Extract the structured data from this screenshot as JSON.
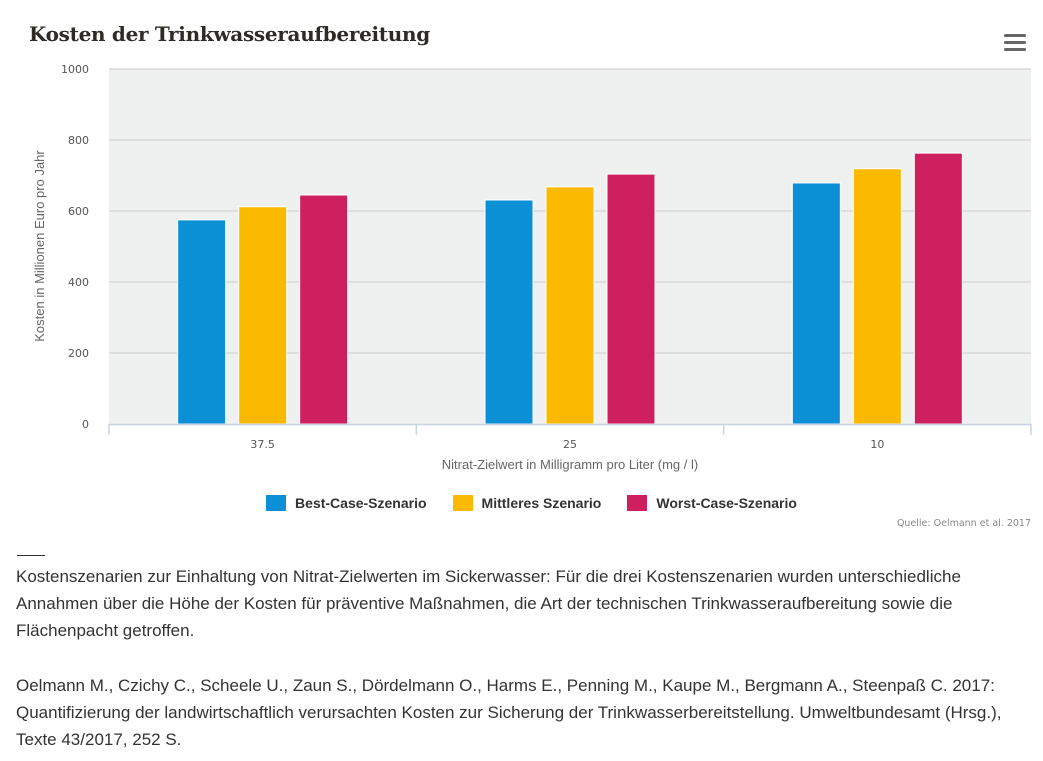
{
  "header": {
    "title": "Kosten der Trinkwasseraufbereitung",
    "menu_icon": "hamburger-menu-icon"
  },
  "chart_data": {
    "type": "bar",
    "title": "Kosten der Trinkwasseraufbereitung",
    "xlabel": "Nitrat-Zielwert in Milligramm pro Liter (mg / l)",
    "ylabel": "Kosten in Millionen Euro pro Jahr",
    "categories": [
      "37.5",
      "25",
      "10"
    ],
    "ylim": [
      0,
      1000
    ],
    "yticks": [
      0,
      200,
      400,
      600,
      800,
      1000
    ],
    "grid": true,
    "legend_position": "bottom-center",
    "series": [
      {
        "name": "Best-Case-Szenario",
        "color": "#0b90d6",
        "values": [
          575,
          631,
          679
        ]
      },
      {
        "name": "Mittleres Szenario",
        "color": "#fbb900",
        "values": [
          612,
          668,
          719
        ]
      },
      {
        "name": "Worst-Case-Szenario",
        "color": "#ce1f5e",
        "values": [
          645,
          704,
          763
        ]
      }
    ],
    "source": "Quelle: Oelmann et al. 2017"
  },
  "caption": "Kostenszenarien zur Einhaltung von Nitrat-Zielwerten im Sickerwasser: Für die drei Kostenszenarien wurden unterschiedliche Annahmen über die Höhe der Kosten für präventive Maßnahmen, die Art der technischen Trinkwasseraufbereitung sowie die Flächenpacht getroffen.",
  "reference": "Oelmann M., Czichy C., Scheele U., Zaun S., Dördelmann O., Harms E., Penning M., Kaupe M., Bergmann A., Steenpaß C. 2017: Quantifizierung der landwirtschaftlich verursachten Kosten zur Sicherung der Trinkwasserbereitstellung. Umweltbundesamt (Hrsg.), Texte 43/2017, 252 S."
}
